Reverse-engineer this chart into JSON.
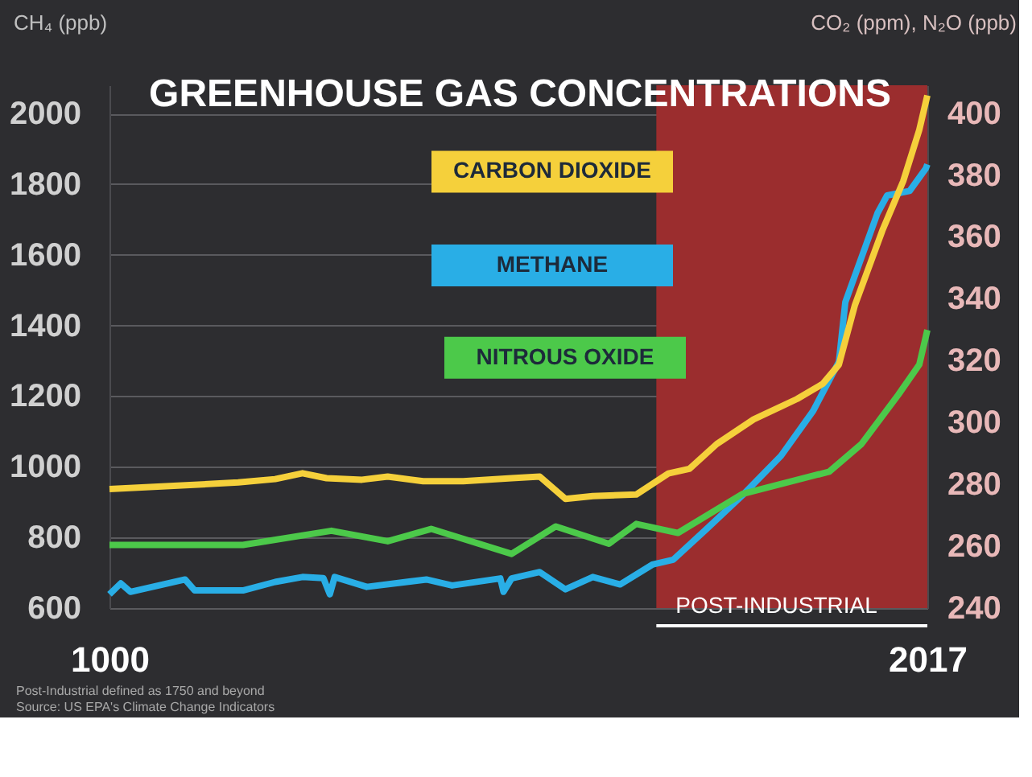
{
  "chart_data": {
    "type": "line",
    "title": "GREENHOUSE GAS CONCENTRATIONS",
    "ylabel": "CH₄ (ppb)",
    "y2label": "CO₂ (ppm), N₂O (ppb)",
    "xlim": [
      1000,
      2017
    ],
    "xticks": [
      1000,
      2017
    ],
    "ylim": [
      600,
      2080
    ],
    "yticks": [
      600,
      800,
      1000,
      1200,
      1400,
      1600,
      1800,
      2000
    ],
    "y2lim": [
      240,
      409
    ],
    "y2ticks": [
      240,
      260,
      280,
      300,
      320,
      340,
      360,
      380,
      400
    ],
    "grid": "y",
    "bands": [
      {
        "axis": "x",
        "from": 1680,
        "to": 2017,
        "label": "POST-INDUSTRIAL",
        "color": "#9b2d2e"
      }
    ],
    "annotations": [
      "Post-Industrial defined as 1750 and beyond",
      "Source: US EPA's Climate Change Indicators"
    ],
    "series": [
      {
        "name": "CARBON DIOXIDE",
        "color": "#f5d03b",
        "axis": "y2",
        "x": [
          1000,
          1080,
          1160,
          1206,
          1240,
          1270,
          1314,
          1346,
          1390,
          1440,
          1500,
          1535,
          1567,
          1601,
          1655,
          1695,
          1721,
          1755,
          1801,
          1855,
          1887,
          1907,
          1927,
          1961,
          1987,
          2007,
          2017
        ],
        "values": [
          278.5,
          279.5,
          280.6,
          281.7,
          283.6,
          282,
          281.5,
          282.5,
          281,
          281,
          282,
          282.5,
          275.3,
          276.2,
          276.7,
          283.5,
          285,
          293,
          301,
          307.6,
          312.5,
          318.7,
          338,
          362,
          378,
          394.6,
          405.7
        ]
      },
      {
        "name": "METHANE",
        "color": "#29aee6",
        "x": [
          1000,
          1014,
          1026,
          1094,
          1106,
          1166,
          1206,
          1240,
          1266,
          1274,
          1280,
          1320,
          1394,
          1426,
          1486,
          1490,
          1500,
          1535,
          1567,
          1601,
          1635,
          1675,
          1701,
          1741,
          1787,
          1835,
          1875,
          1907,
          1915,
          1955,
          1967,
          1995,
          2015,
          2017
        ],
        "values": [
          639,
          670,
          646,
          681,
          650,
          650,
          674,
          688,
          685,
          639,
          688,
          660,
          681,
          664,
          684,
          646,
          684,
          702,
          653,
          688,
          667,
          723,
          737,
          821,
          919,
          1031,
          1158,
          1297,
          1466,
          1718,
          1768,
          1781,
          1844,
          1856
        ]
      },
      {
        "name": "NITROUS OXIDE",
        "color": "#4cc94a",
        "axis": "y2",
        "x": [
          1000,
          1166,
          1276,
          1346,
          1400,
          1500,
          1555,
          1621,
          1655,
          1707,
          1787,
          1895,
          1935,
          1981,
          2007,
          2017
        ],
        "values": [
          260.4,
          260.4,
          265,
          261.6,
          265.6,
          257.5,
          266.4,
          260.8,
          267.2,
          264.3,
          276.9,
          284.1,
          293,
          309,
          318.7,
          329.9
        ]
      }
    ]
  }
}
